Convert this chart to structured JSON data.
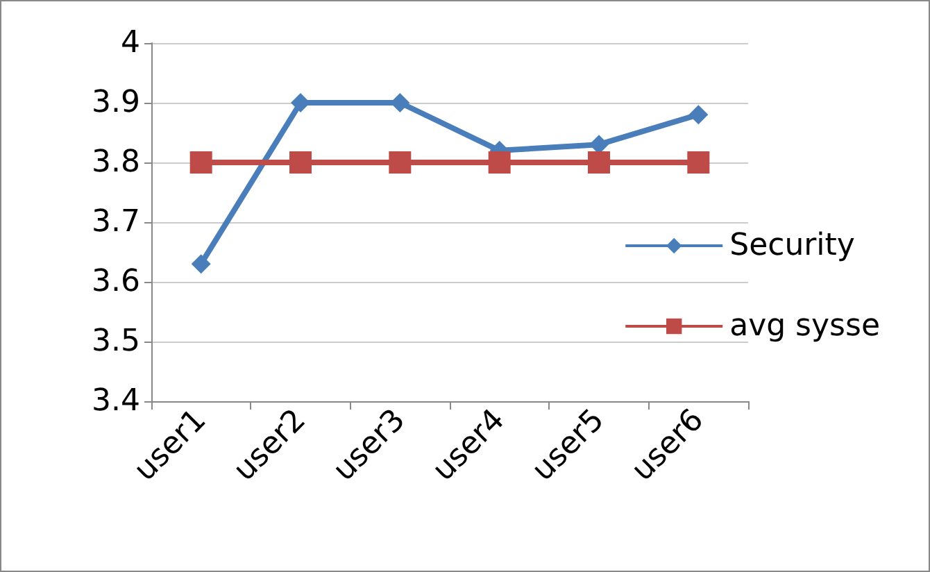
{
  "chart_data": {
    "type": "line",
    "categories": [
      "user1",
      "user2",
      "user3",
      "user4",
      "user5",
      "user6"
    ],
    "series": [
      {
        "name": "Security",
        "color": "#4a7ebb",
        "marker": "diamond",
        "values": [
          3.63,
          3.9,
          3.9,
          3.82,
          3.83,
          3.88
        ]
      },
      {
        "name": "avg sysse",
        "color": "#be4b48",
        "marker": "square",
        "values": [
          3.8,
          3.8,
          3.8,
          3.8,
          3.8,
          3.8
        ]
      }
    ],
    "ylim": [
      3.4,
      4
    ],
    "yticks": [
      3.4,
      3.5,
      3.6,
      3.7,
      3.8,
      3.9,
      4
    ],
    "grid": "y",
    "legend": "right"
  }
}
